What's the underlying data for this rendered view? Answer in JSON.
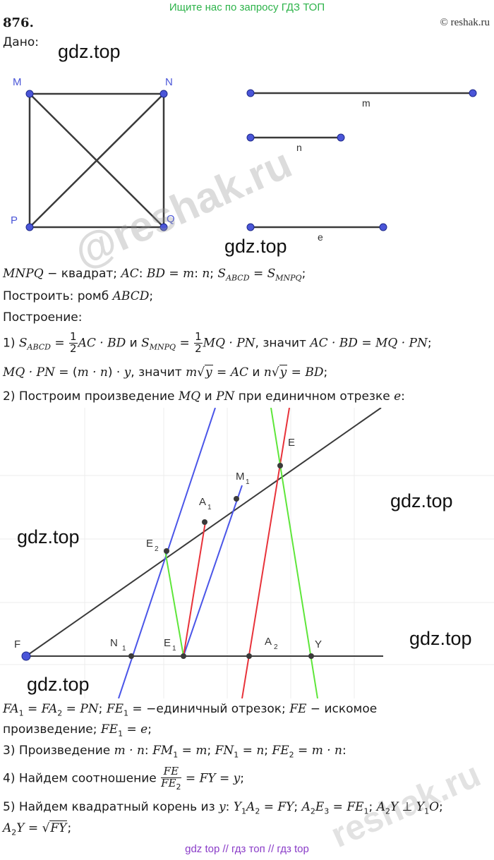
{
  "header": {
    "banner": "Ищите нас по запросу ГДЗ ТОП",
    "problem_number": "876.",
    "copyright": "© reshak.ru"
  },
  "given_label": "Дано:",
  "watermarks": {
    "gdz1": "gdz.top",
    "gdz2": "gdz.top",
    "gdz3": "gdz.top",
    "gdz4": "gdz.top",
    "gdz5": "gdz.top",
    "gdz6": "gdz.top",
    "reshak1": "@reshak.ru",
    "reshak2": "reshak.ru"
  },
  "figure1": {
    "square_labels": {
      "m": "M",
      "n": "N",
      "p": "P",
      "q": "Q"
    },
    "segment_labels": {
      "m": "m",
      "n": "n",
      "e": "e"
    }
  },
  "figure2": {
    "labels": {
      "f": "F",
      "n1": "N",
      "e1": "E",
      "a2": "A",
      "y": "Y",
      "e2": "E",
      "a1": "A",
      "m1": "M",
      "e": "E",
      "sub1": "1",
      "sub2": "2"
    }
  },
  "text": {
    "l1a": "MNPQ",
    "l1b": " − квадрат; ",
    "l1c": "AC",
    "l1d": ": ",
    "l1e": "BD",
    "l1f": " = ",
    "l1g": "m",
    "l1h": ": ",
    "l1i": "n",
    "l1j": "; ",
    "l1k": "S",
    "l1l": "ABCD",
    "l1m": " = ",
    "l1n": "S",
    "l1o": "MNPQ",
    "l1p": ";",
    "l2a": "Построить: ромб ",
    "l2b": "ABCD",
    "l2c": ";",
    "l3": "Построение:",
    "l4a": "1) ",
    "l4b": "S",
    "l4c": "ABCD",
    "l4d": " = ",
    "l4e": "1",
    "l4f": "2",
    "l4g": "AC · BD",
    "l4h": " и ",
    "l4i": "S",
    "l4j": "MNPQ",
    "l4k": " = ",
    "l4l": "1",
    "l4m": "2",
    "l4n": "MQ · PN",
    "l4o": ", значит ",
    "l4p": "AC · BD = MQ · PN",
    "l4q": ";",
    "l5a": "MQ · PN",
    "l5b": " = (",
    "l5c": "m · n",
    "l5d": ") · ",
    "l5e": "y",
    "l5f": ", значит ",
    "l5g": "m",
    "l5h": "√",
    "l5i": "y",
    "l5j": " = ",
    "l5k": "AC",
    "l5l": " и ",
    "l5m": "n",
    "l5n": "√",
    "l5o": "y",
    "l5p": " = ",
    "l5q": "BD",
    "l5r": ";",
    "l6a": "2) Построим произведение ",
    "l6b": "MQ",
    "l6c": " и ",
    "l6d": "PN",
    "l6e": " при единичном отрезке ",
    "l6f": "e",
    "l6g": ":",
    "l7a": "FA",
    "l7b": "1",
    "l7c": " = ",
    "l7d": "FA",
    "l7e": "2",
    "l7f": " = ",
    "l7g": "PN",
    "l7h": "; ",
    "l7i": "FE",
    "l7j": "1",
    "l7k": " = −единичный отрезок; ",
    "l7l": "FE",
    "l7m": " − искомое",
    "l8a": "произведение; ",
    "l8b": "FE",
    "l8c": "1",
    "l8d": " = ",
    "l8e": "e",
    "l8f": ";",
    "l9a": "3) Произведение ",
    "l9b": "m · n",
    "l9c": ": ",
    "l9d": "FM",
    "l9e": "1",
    "l9f": " = ",
    "l9g": "m",
    "l9h": "; ",
    "l9i": "FN",
    "l9j": "1",
    "l9k": " = ",
    "l9l": "n",
    "l9m": "; ",
    "l9n": "FE",
    "l9o": "2",
    "l9p": " = ",
    "l9q": "m · n",
    "l9r": ":",
    "l10a": "4) Найдем соотношение ",
    "l10b": "FE",
    "l10c": "FE",
    "l10d": "2",
    "l10e": " = ",
    "l10f": "FY",
    "l10g": " = ",
    "l10h": "y",
    "l10i": ";",
    "l11a": "5) Найдем квадратный корень из ",
    "l11b": "y",
    "l11c": ": ",
    "l11d": "Y",
    "l11e": "1",
    "l11f": "A",
    "l11g": "2",
    "l11h": " = ",
    "l11i": "FY",
    "l11j": "; ",
    "l11k": "A",
    "l11l": "2",
    "l11m": "E",
    "l11n": "3",
    "l11o": " = ",
    "l11p": "FE",
    "l11q": "1",
    "l11r": "; ",
    "l11s": "A",
    "l11t": "2",
    "l11u": "Y",
    "l11v": " ⊥ ",
    "l11w": "Y",
    "l11x": "1",
    "l11y": "O",
    "l11z": ";",
    "l12a": "A",
    "l12b": "2",
    "l12c": "Y",
    "l12d": " = ",
    "l12e": "√",
    "l12f": "FY",
    "l12g": ";"
  },
  "footer": {
    "links": "gdz top  //  гдз топ  //  гдз top"
  },
  "colors": {
    "banner": "#2db34a",
    "point": "#4a55d8",
    "blue_line": "#4a55e8",
    "red_line": "#e8323a",
    "green_line": "#5ee63a",
    "links": "#8a3cc8"
  }
}
